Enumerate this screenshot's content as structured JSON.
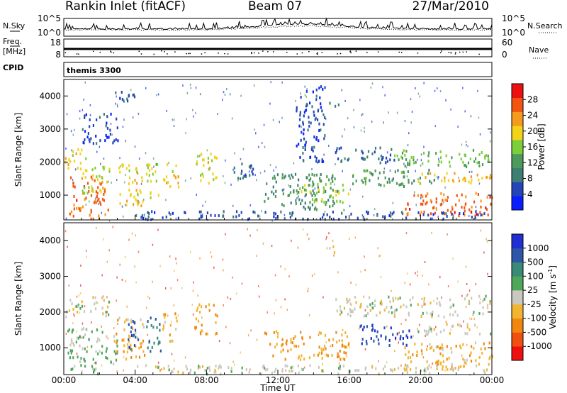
{
  "header": {
    "station": "Rankin Inlet (fitACF)",
    "beam": "Beam 07",
    "date": "27/Mar/2010"
  },
  "noise_panel": {
    "left_label": "N.Sky",
    "right_label": "N.Search",
    "left_ticks": [
      "10^5",
      "10^0"
    ],
    "right_ticks": [
      "10^5",
      "10^0"
    ]
  },
  "freq_panel": {
    "left_label": "Freq.",
    "left_unit": "[MHz]",
    "left_ticks": [
      "18",
      "8"
    ],
    "right_label": "Nave",
    "right_ticks": [
      "60",
      "0"
    ]
  },
  "cpid": {
    "label": "CPID",
    "value": "themis 3300"
  },
  "colors": {
    "power_scale": [
      "#0a1fff",
      "#2445b8",
      "#3f7f73",
      "#4e9a5a",
      "#7ccf3a",
      "#f3d21a",
      "#f59a1c",
      "#f2550f",
      "#ec1010"
    ],
    "velocity_scale": [
      "#1f2fd4",
      "#2d55a8",
      "#3a8a78",
      "#4fa85a",
      "#c9c9c0",
      "#f2b531",
      "#f2870f",
      "#f05010",
      "#ee1010"
    ]
  },
  "chart_data": [
    {
      "type": "heatmap",
      "name": "power",
      "ylabel": "Slant Range [km]",
      "y_ticks": [
        "1000",
        "2000",
        "3000",
        "4000"
      ],
      "ylim": [
        250,
        4500
      ],
      "xlim": [
        "00:00",
        "00:00"
      ],
      "colorbar": {
        "label": "Power [dB]",
        "ticks": [
          "28",
          "24",
          "20",
          "16",
          "12",
          "8",
          "4"
        ],
        "range": [
          0,
          32
        ]
      },
      "patches": [
        {
          "t0": 0.3,
          "t1": 2.5,
          "r0": 300,
          "r1": 1600,
          "v": 26
        },
        {
          "t0": 0.0,
          "t1": 1.2,
          "r0": 1800,
          "r1": 2450,
          "v": 20
        },
        {
          "t0": 1.0,
          "t1": 2.6,
          "r0": 1100,
          "r1": 1900,
          "v": 17
        },
        {
          "t0": 3.0,
          "t1": 4.4,
          "r0": 700,
          "r1": 2000,
          "v": 20
        },
        {
          "t0": 4.6,
          "t1": 5.3,
          "r0": 800,
          "r1": 2000,
          "v": 17
        },
        {
          "t0": 5.5,
          "t1": 6.4,
          "r0": 1200,
          "r1": 2000,
          "v": 20
        },
        {
          "t0": 7.3,
          "t1": 8.6,
          "r0": 1400,
          "r1": 2300,
          "v": 19
        },
        {
          "t0": 9.4,
          "t1": 10.6,
          "r0": 1300,
          "r1": 2000,
          "v": 8
        },
        {
          "t0": 11.2,
          "t1": 15.2,
          "r0": 600,
          "r1": 1700,
          "v": 11
        },
        {
          "t0": 13.0,
          "t1": 16.0,
          "r0": 800,
          "r1": 1400,
          "v": 16
        },
        {
          "t0": 15.2,
          "t1": 18.5,
          "r0": 2000,
          "r1": 2500,
          "v": 8
        },
        {
          "t0": 16.0,
          "t1": 21.0,
          "r0": 1300,
          "r1": 1800,
          "v": 12
        },
        {
          "t0": 18.5,
          "t1": 24.0,
          "r0": 1900,
          "r1": 2400,
          "v": 14
        },
        {
          "t0": 19.5,
          "t1": 24.0,
          "r0": 1400,
          "r1": 1700,
          "v": 21
        },
        {
          "t0": 19.0,
          "t1": 24.0,
          "r0": 400,
          "r1": 1100,
          "v": 26
        },
        {
          "t0": 14.8,
          "t1": 15.4,
          "r0": 3700,
          "r1": 3900,
          "v": 10
        },
        {
          "t0": 2.8,
          "t1": 4.2,
          "r0": 3800,
          "r1": 4200,
          "v": 6
        },
        {
          "t0": 1.0,
          "t1": 3.0,
          "r0": 2600,
          "r1": 3500,
          "v": 5
        },
        {
          "t0": 13.0,
          "t1": 14.6,
          "r0": 2000,
          "r1": 4450,
          "v": 5
        },
        {
          "t0": 4.0,
          "t1": 24.0,
          "r0": 300,
          "r1": 550,
          "v": 6
        }
      ]
    },
    {
      "type": "heatmap",
      "name": "velocity",
      "ylabel": "Slant Range [km]",
      "xlabel": "Time UT",
      "x_ticks": [
        "00:00",
        "04:00",
        "08:00",
        "12:00",
        "16:00",
        "20:00",
        "00:00"
      ],
      "y_ticks": [
        "1000",
        "2000",
        "3000",
        "4000"
      ],
      "ylim": [
        250,
        4500
      ],
      "xlim": [
        "00:00",
        "00:00"
      ],
      "colorbar": {
        "label": "Velocity [m s",
        "label_superscript": "-1",
        "label_end": "]",
        "ticks": [
          "1000",
          "500",
          "100",
          "25",
          "-25",
          "-100",
          "-500",
          "-1000"
        ],
        "range": [
          -1200,
          1200
        ]
      },
      "patches": [
        {
          "t0": 0.0,
          "t1": 2.5,
          "r0": 1900,
          "r1": 2450,
          "v": 0
        },
        {
          "t0": 0.2,
          "t1": 3.0,
          "r0": 300,
          "r1": 1600,
          "v": 200
        },
        {
          "t0": 2.8,
          "t1": 4.5,
          "r0": 700,
          "r1": 1900,
          "v": -300
        },
        {
          "t0": 3.4,
          "t1": 4.2,
          "r0": 900,
          "r1": 1800,
          "v": 800
        },
        {
          "t0": 4.6,
          "t1": 5.4,
          "r0": 800,
          "r1": 1900,
          "v": 600
        },
        {
          "t0": 5.5,
          "t1": 6.4,
          "r0": 1200,
          "r1": 2000,
          "v": -300
        },
        {
          "t0": 7.3,
          "t1": 8.6,
          "r0": 1400,
          "r1": 2300,
          "v": -400
        },
        {
          "t0": 11.2,
          "t1": 16.0,
          "r0": 700,
          "r1": 1500,
          "v": -350
        },
        {
          "t0": 16.5,
          "t1": 19.5,
          "r0": 1100,
          "r1": 1700,
          "v": 900
        },
        {
          "t0": 15.2,
          "t1": 24.0,
          "r0": 1900,
          "r1": 2500,
          "v": 0
        },
        {
          "t0": 19.5,
          "t1": 24.0,
          "r0": 1400,
          "r1": 1700,
          "v": 0
        },
        {
          "t0": 19.0,
          "t1": 24.0,
          "r0": 400,
          "r1": 1200,
          "v": -300
        },
        {
          "t0": 14.8,
          "t1": 15.4,
          "r0": 3700,
          "r1": 3900,
          "v": -200
        },
        {
          "t0": 4.0,
          "t1": 24.0,
          "r0": 300,
          "r1": 550,
          "v": 0
        }
      ]
    }
  ]
}
